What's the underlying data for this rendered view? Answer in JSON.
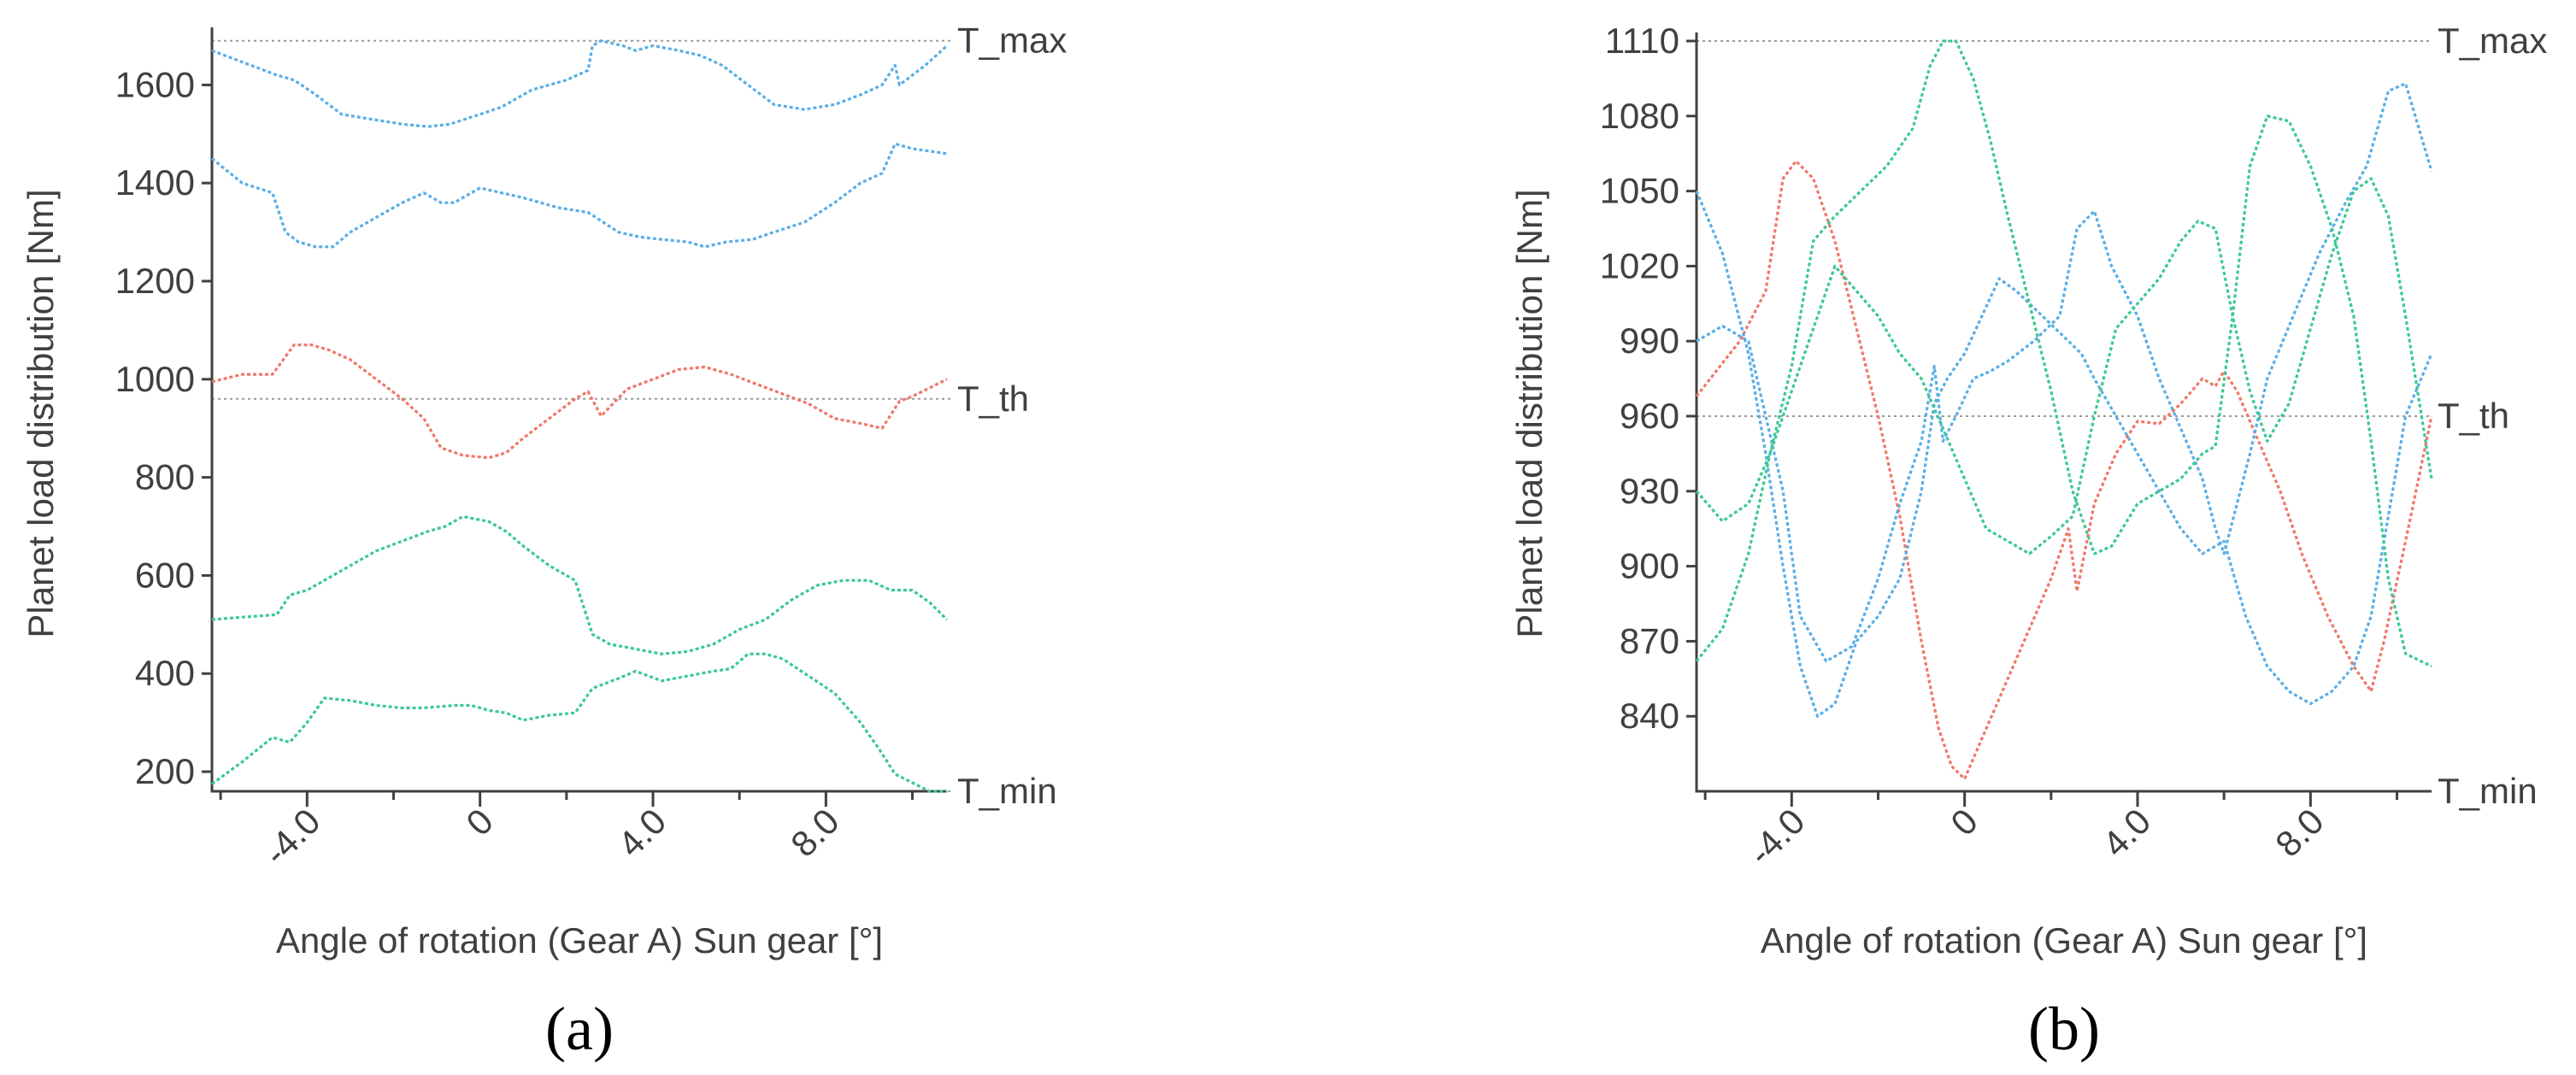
{
  "chart_data": [
    {
      "type": "line",
      "panel_label": "(a)",
      "xlabel": "Angle of rotation (Gear A) Sun gear [°]",
      "ylabel": "Planet load distribution [Nm]",
      "xlim": [
        -6.2,
        10.8
      ],
      "ylim": [
        160,
        1700
      ],
      "x_ticks": [
        -4.0,
        0,
        4.0,
        8.0
      ],
      "x_tick_labels": [
        "-4.0",
        "0",
        "4.0",
        "8.0"
      ],
      "x_minor_ticks": [
        -6,
        -2,
        2,
        6,
        10
      ],
      "y_ticks": [
        200,
        400,
        600,
        800,
        1000,
        1200,
        1400,
        1600
      ],
      "y_tick_labels": [
        "200",
        "400",
        "600",
        "800",
        "1000",
        "1200",
        "1400",
        "1600"
      ],
      "reference_lines": [
        {
          "label": "T_max",
          "value": 1690
        },
        {
          "label": "T_th",
          "value": 960
        },
        {
          "label": "T_min",
          "value": 160
        }
      ],
      "grid": false,
      "series": [
        {
          "color": "#5aaee6",
          "x": [
            -6.2,
            -4.7,
            -4.3,
            -3.8,
            -3.2,
            -2.5,
            -1.8,
            -1.2,
            -0.7,
            0.0,
            0.5,
            0.8,
            1.2,
            2.0,
            2.5,
            2.6,
            2.8,
            3.3,
            3.6,
            4.0,
            4.6,
            5.1,
            5.6,
            6.2,
            6.8,
            7.5,
            8.2,
            8.8,
            9.3,
            9.6,
            9.7,
            10.3,
            10.8
          ],
          "y": [
            1670,
            1620,
            1610,
            1580,
            1540,
            1530,
            1520,
            1515,
            1520,
            1540,
            1555,
            1570,
            1590,
            1610,
            1630,
            1680,
            1690,
            1680,
            1670,
            1680,
            1670,
            1660,
            1640,
            1600,
            1560,
            1550,
            1560,
            1580,
            1600,
            1640,
            1600,
            1640,
            1680
          ]
        },
        {
          "color": "#5aaee6",
          "x": [
            -6.2,
            -5.5,
            -4.8,
            -4.5,
            -4.2,
            -3.8,
            -3.4,
            -3.0,
            -2.4,
            -1.8,
            -1.3,
            -0.9,
            -0.6,
            0.0,
            0.5,
            1.0,
            1.8,
            2.5,
            3.2,
            3.7,
            4.2,
            4.8,
            5.2,
            5.7,
            6.3,
            6.8,
            7.5,
            8.2,
            8.8,
            9.3,
            9.6,
            10.0,
            10.8
          ],
          "y": [
            1450,
            1400,
            1380,
            1300,
            1280,
            1270,
            1270,
            1300,
            1330,
            1360,
            1380,
            1360,
            1360,
            1390,
            1380,
            1370,
            1350,
            1340,
            1300,
            1290,
            1285,
            1280,
            1270,
            1280,
            1285,
            1300,
            1320,
            1360,
            1400,
            1420,
            1480,
            1470,
            1460
          ]
        },
        {
          "color": "#f07868",
          "x": [
            -6.2,
            -5.5,
            -4.8,
            -4.3,
            -3.9,
            -3.5,
            -3.0,
            -2.4,
            -1.8,
            -1.3,
            -0.9,
            -0.4,
            0.2,
            0.6,
            1.0,
            1.6,
            2.2,
            2.5,
            2.8,
            3.4,
            4.0,
            4.6,
            5.2,
            5.8,
            6.4,
            7.0,
            7.6,
            8.2,
            8.8,
            9.3,
            9.7,
            10.0,
            10.8
          ],
          "y": [
            995,
            1010,
            1010,
            1070,
            1070,
            1060,
            1040,
            1000,
            960,
            920,
            860,
            845,
            840,
            850,
            880,
            920,
            960,
            975,
            925,
            980,
            1000,
            1020,
            1025,
            1010,
            990,
            970,
            950,
            920,
            910,
            900,
            955,
            965,
            1000
          ]
        },
        {
          "color": "#3cc896",
          "x": [
            -6.2,
            -5.5,
            -4.7,
            -4.4,
            -4.0,
            -3.6,
            -3.0,
            -2.4,
            -1.8,
            -1.2,
            -0.8,
            -0.4,
            0.2,
            0.6,
            1.0,
            1.6,
            2.2,
            2.6,
            3.0,
            3.6,
            4.2,
            4.8,
            5.4,
            6.0,
            6.6,
            7.2,
            7.8,
            8.4,
            9.0,
            9.5,
            10.0,
            10.4,
            10.8
          ],
          "y": [
            510,
            515,
            520,
            560,
            570,
            590,
            620,
            650,
            670,
            690,
            700,
            720,
            710,
            690,
            660,
            620,
            590,
            480,
            460,
            450,
            440,
            445,
            460,
            490,
            510,
            550,
            580,
            590,
            590,
            570,
            570,
            545,
            510
          ]
        },
        {
          "color": "#3cc896",
          "x": [
            -6.2,
            -5.5,
            -4.8,
            -4.4,
            -4.0,
            -3.6,
            -3.0,
            -2.4,
            -1.8,
            -1.3,
            -0.6,
            -0.2,
            0.2,
            0.6,
            1.0,
            1.6,
            2.2,
            2.6,
            3.2,
            3.6,
            4.2,
            4.8,
            5.4,
            5.8,
            6.2,
            6.6,
            7.0,
            7.6,
            8.2,
            8.8,
            9.2,
            9.6,
            10.4,
            10.8
          ],
          "y": [
            175,
            220,
            270,
            260,
            300,
            350,
            345,
            335,
            330,
            330,
            335,
            335,
            325,
            320,
            305,
            315,
            320,
            370,
            390,
            405,
            385,
            395,
            405,
            410,
            440,
            440,
            430,
            395,
            360,
            300,
            250,
            195,
            160,
            160
          ]
        }
      ]
    },
    {
      "type": "line",
      "panel_label": "(b)",
      "xlabel": "Angle of rotation (Gear A) Sun gear [°]",
      "ylabel": "Planet load distribution [Nm]",
      "xlim": [
        -6.2,
        10.8
      ],
      "ylim": [
        810,
        1110
      ],
      "x_ticks": [
        -4.0,
        0,
        4.0,
        8.0
      ],
      "x_tick_labels": [
        "-4.0",
        "0",
        "4.0",
        "8.0"
      ],
      "x_minor_ticks": [
        -6,
        -2,
        2,
        6,
        10
      ],
      "y_ticks": [
        840,
        870,
        900,
        930,
        960,
        990,
        1020,
        1050,
        1080,
        1110
      ],
      "y_tick_labels": [
        "840",
        "870",
        "900",
        "930",
        "960",
        "990",
        "1020",
        "1050",
        "1080",
        "1110"
      ],
      "reference_lines": [
        {
          "label": "T_max",
          "value": 1110
        },
        {
          "label": "T_th",
          "value": 960
        },
        {
          "label": "T_min",
          "value": 810
        }
      ],
      "grid": false,
      "series": [
        {
          "color": "#f07868",
          "x": [
            -6.2,
            -5.2,
            -4.6,
            -4.2,
            -3.9,
            -3.5,
            -3.0,
            -2.5,
            -2.0,
            -1.5,
            -1.0,
            -0.6,
            -0.3,
            0.0,
            0.5,
            1.0,
            1.5,
            2.0,
            2.4,
            2.6,
            3.0,
            3.5,
            4.0,
            4.5,
            5.0,
            5.5,
            5.8,
            6.0,
            6.3,
            6.8,
            7.3,
            7.8,
            8.4,
            9.0,
            9.4,
            9.7,
            10.2,
            10.8
          ],
          "y": [
            968,
            990,
            1010,
            1055,
            1062,
            1055,
            1030,
            995,
            960,
            920,
            870,
            835,
            820,
            815,
            835,
            855,
            875,
            895,
            915,
            890,
            925,
            945,
            958,
            957,
            965,
            975,
            972,
            978,
            970,
            950,
            930,
            905,
            880,
            860,
            850,
            870,
            910,
            960
          ]
        },
        {
          "color": "#5aaee6",
          "x": [
            -6.2,
            -5.6,
            -5.0,
            -4.6,
            -4.2,
            -3.8,
            -3.4,
            -3.0,
            -2.5,
            -2.0,
            -1.5,
            -1.0,
            -0.7,
            -0.4,
            0.0,
            0.4,
            0.8,
            1.2,
            1.8,
            2.4,
            2.7,
            3.0,
            3.5,
            4.0,
            4.5,
            5.0,
            5.5,
            6.0,
            6.5,
            7.0,
            7.5,
            8.0,
            8.5,
            9.0,
            9.4,
            9.8,
            10.2,
            10.8
          ],
          "y": [
            1050,
            1025,
            985,
            945,
            900,
            860,
            840,
            845,
            870,
            880,
            895,
            930,
            965,
            975,
            985,
            1000,
            1015,
            1010,
            1000,
            990,
            985,
            975,
            960,
            945,
            930,
            915,
            905,
            910,
            880,
            860,
            850,
            845,
            850,
            860,
            880,
            920,
            960,
            985
          ]
        },
        {
          "color": "#5aaee6",
          "x": [
            -6.2,
            -5.6,
            -5.0,
            -4.6,
            -4.2,
            -3.8,
            -3.2,
            -2.6,
            -2.0,
            -1.5,
            -1.0,
            -0.7,
            -0.5,
            -0.2,
            0.2,
            0.6,
            1.0,
            1.6,
            2.2,
            2.6,
            3.0,
            3.4,
            4.0,
            4.5,
            5.0,
            5.5,
            5.8,
            6.0,
            6.3,
            6.6,
            7.0,
            7.6,
            8.2,
            8.8,
            9.3,
            9.8,
            10.2,
            10.8
          ],
          "y": [
            990,
            996,
            990,
            960,
            930,
            880,
            862,
            868,
            895,
            925,
            950,
            980,
            950,
            960,
            975,
            978,
            982,
            990,
            1000,
            1035,
            1042,
            1020,
            1000,
            975,
            955,
            935,
            915,
            905,
            925,
            945,
            975,
            1000,
            1025,
            1045,
            1060,
            1090,
            1093,
            1058
          ]
        },
        {
          "color": "#3cc896",
          "x": [
            -6.2,
            -5.6,
            -5.0,
            -4.5,
            -4.0,
            -3.5,
            -3.0,
            -2.4,
            -1.8,
            -1.2,
            -0.8,
            -0.5,
            -0.2,
            0.2,
            0.6,
            1.0,
            1.5,
            2.0,
            2.5,
            3.0,
            3.4,
            4.0,
            4.5,
            5.0,
            5.5,
            5.8,
            6.2,
            6.6,
            7.0,
            7.5,
            8.0,
            8.5,
            9.0,
            9.4,
            9.8,
            10.2,
            10.8
          ],
          "y": [
            930,
            918,
            925,
            945,
            980,
            1030,
            1040,
            1050,
            1060,
            1075,
            1100,
            1110,
            1110,
            1095,
            1070,
            1040,
            1005,
            970,
            930,
            905,
            908,
            925,
            930,
            935,
            945,
            948,
            1000,
            1060,
            1080,
            1078,
            1060,
            1035,
            1000,
            950,
            895,
            865,
            860
          ]
        },
        {
          "color": "#3cc896",
          "x": [
            -6.2,
            -5.6,
            -5.0,
            -4.5,
            -4.0,
            -3.5,
            -3.0,
            -2.5,
            -2.0,
            -1.5,
            -1.0,
            -0.5,
            0.0,
            0.5,
            1.0,
            1.5,
            2.0,
            2.5,
            3.0,
            3.5,
            4.0,
            4.5,
            5.0,
            5.4,
            5.8,
            6.2,
            6.6,
            7.0,
            7.5,
            8.0,
            8.5,
            9.0,
            9.4,
            9.8,
            10.2,
            10.8
          ],
          "y": [
            862,
            875,
            905,
            945,
            970,
            995,
            1020,
            1010,
            1000,
            985,
            975,
            955,
            935,
            915,
            910,
            905,
            912,
            920,
            960,
            995,
            1005,
            1015,
            1030,
            1038,
            1035,
            1000,
            970,
            950,
            965,
            995,
            1025,
            1050,
            1055,
            1040,
            1000,
            935
          ]
        }
      ]
    }
  ]
}
